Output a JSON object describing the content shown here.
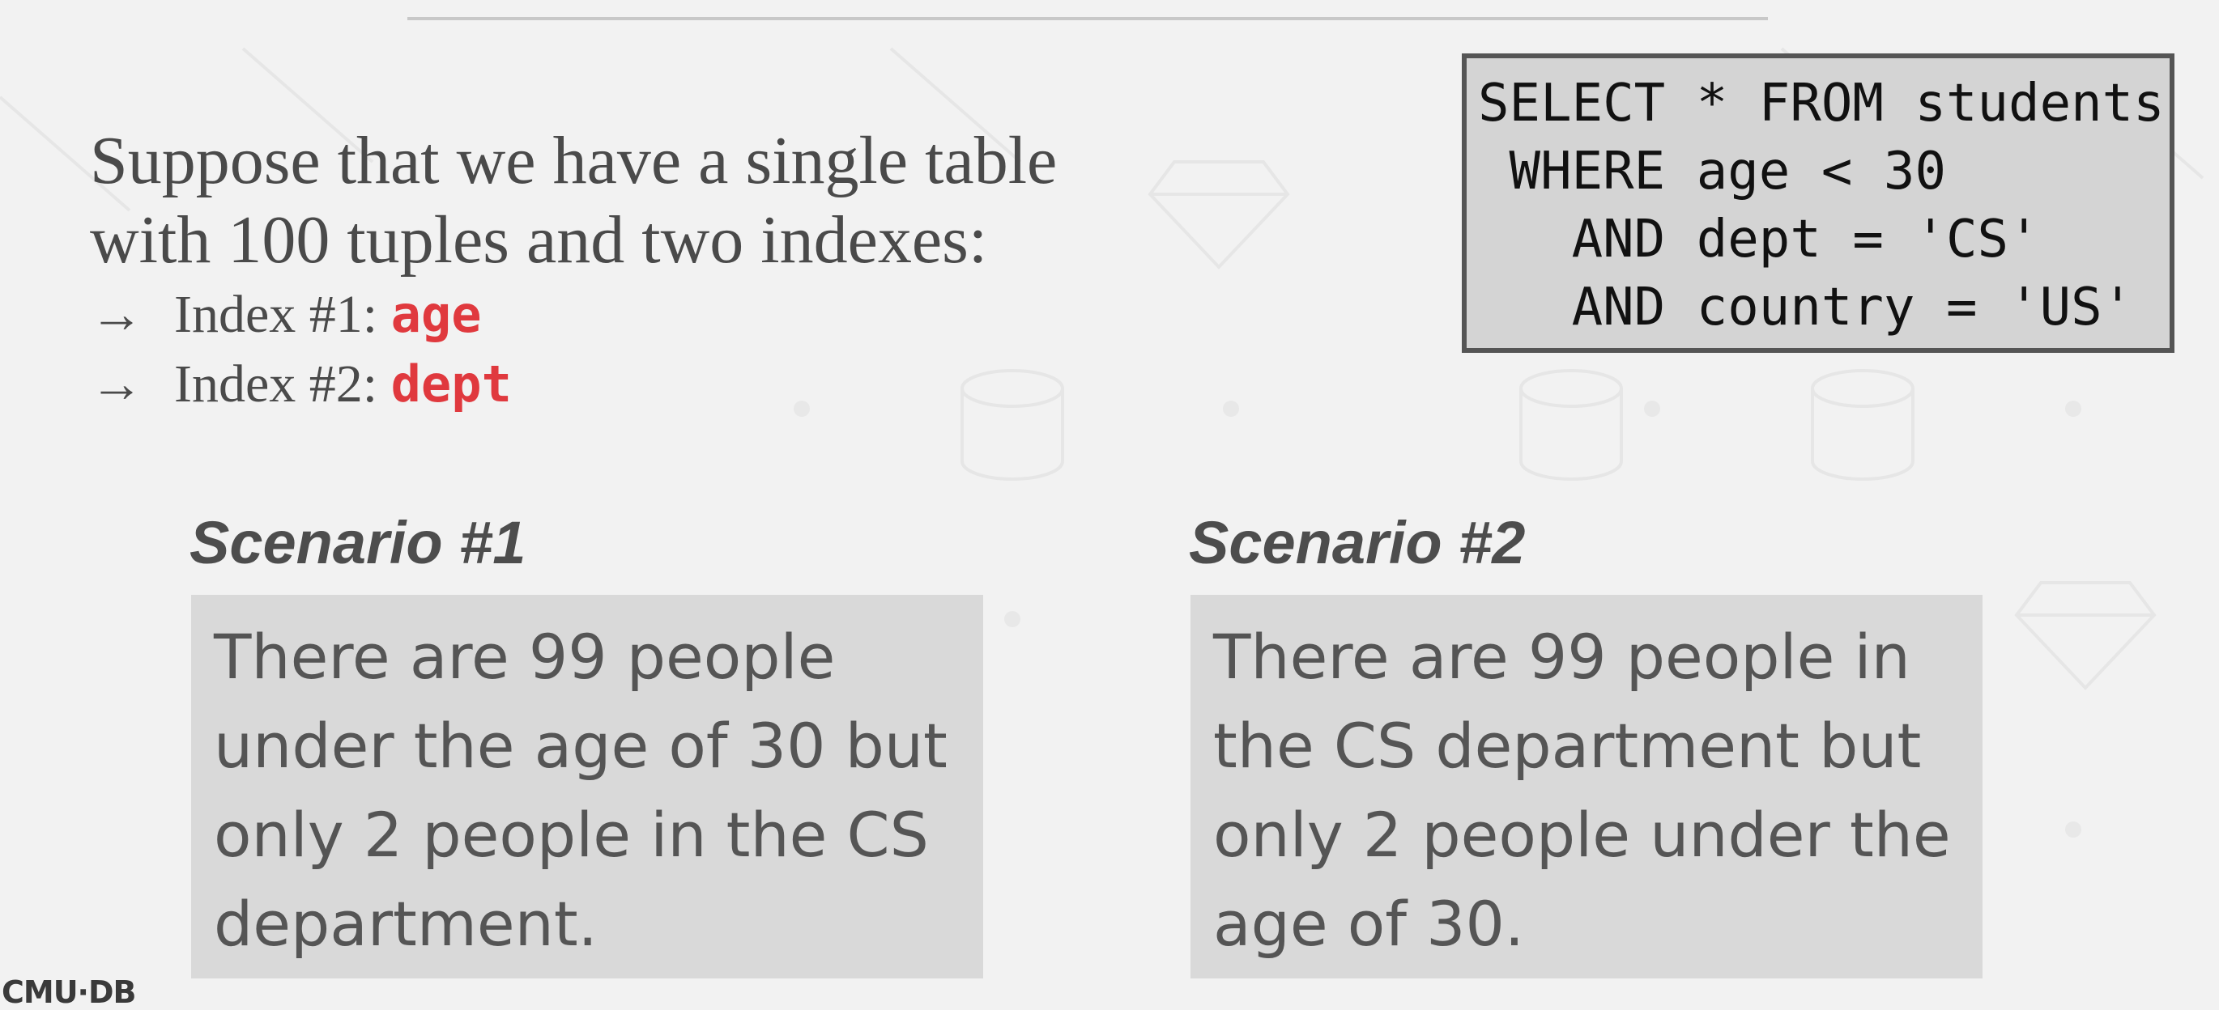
{
  "intro": {
    "line1": "Suppose that we have a single table",
    "line2": "with 100 tuples and two indexes:",
    "bullets": [
      {
        "arrow": "→",
        "label": "Index #1: ",
        "code": "age"
      },
      {
        "arrow": "→",
        "label": "Index #2: ",
        "code": "dept"
      }
    ]
  },
  "sql": {
    "lines": [
      "SELECT * FROM students",
      " WHERE age < 30",
      "   AND dept = 'CS'",
      "   AND country = 'US'"
    ]
  },
  "scenarios": [
    {
      "title": "Scenario #1",
      "lines": [
        "There are 99 people",
        "under the age of 30 but",
        "only 2 people in the CS",
        "department."
      ]
    },
    {
      "title": "Scenario #2",
      "lines": [
        "There are 99 people in",
        "the CS department but",
        "only 2 people under the",
        "age of 30."
      ]
    }
  ],
  "footer": {
    "logo": "CMU·DB"
  },
  "colors": {
    "code_highlight": "#e0393e",
    "background": "#f2f2f2",
    "box": "#d9d9d9"
  }
}
